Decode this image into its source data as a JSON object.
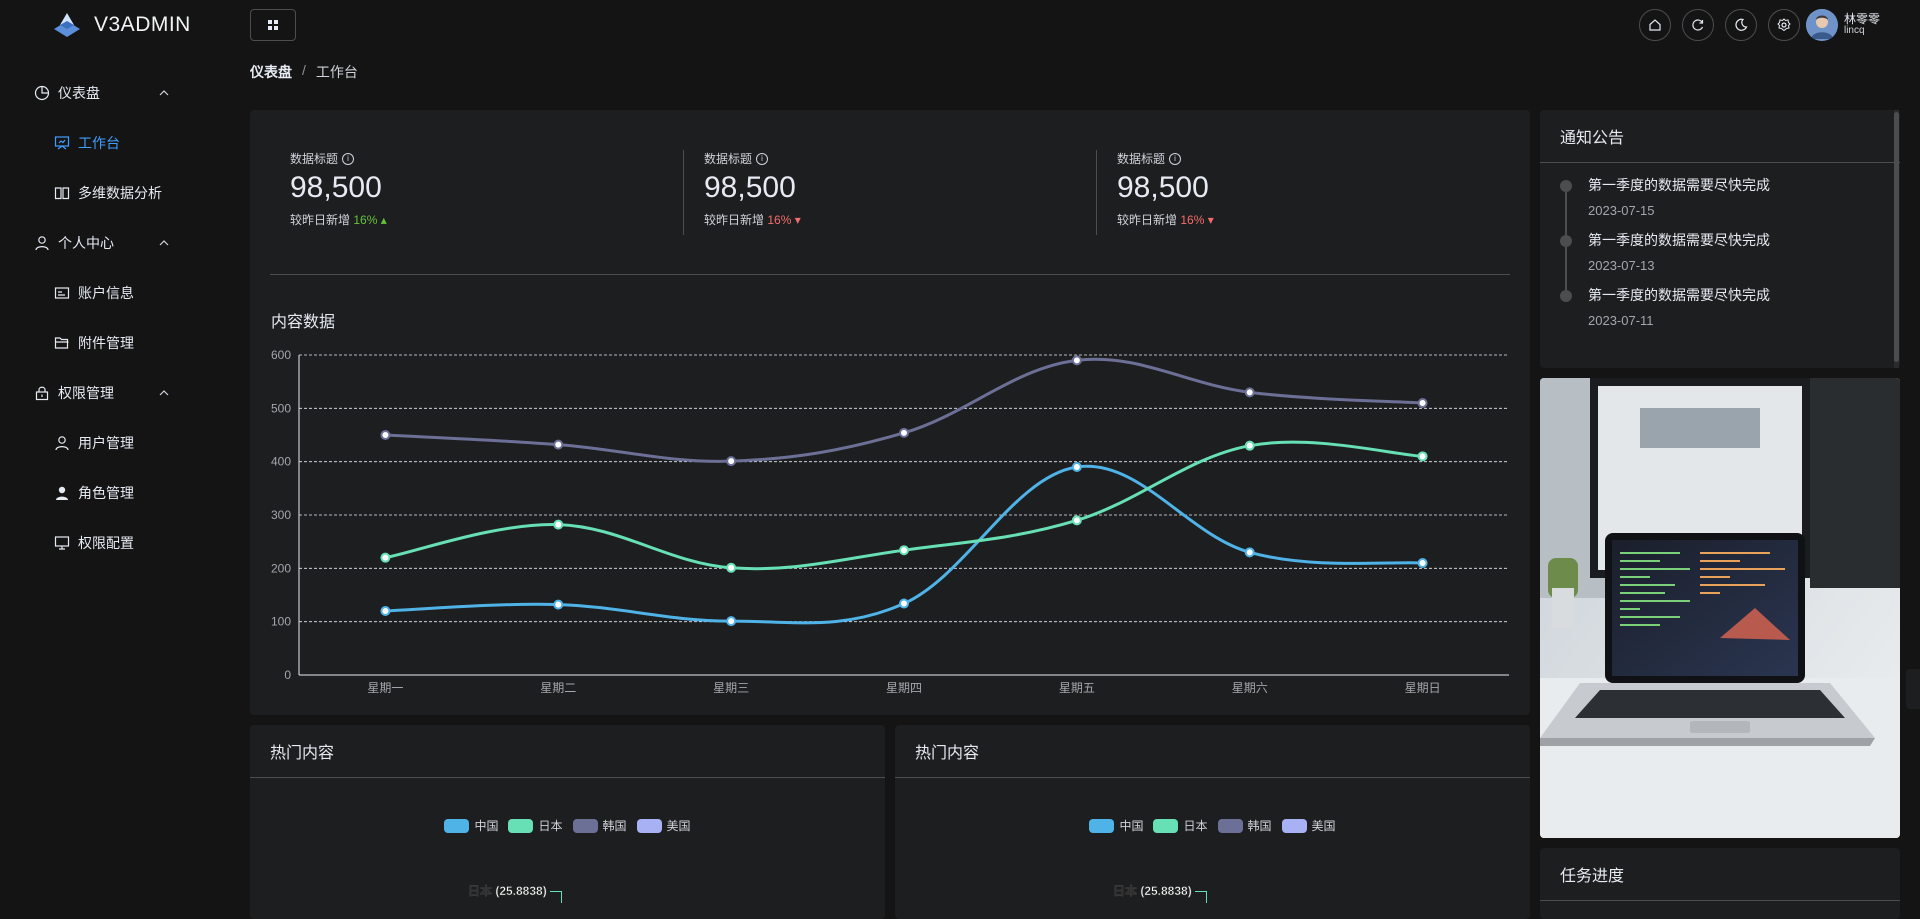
{
  "app": {
    "title": "V3ADMIN"
  },
  "sidebar": {
    "groups": [
      {
        "label": "仪表盘",
        "icon": "pie-chart-icon",
        "items": [
          {
            "label": "工作台",
            "icon": "presentation-icon",
            "active": true
          },
          {
            "label": "多维数据分析",
            "icon": "book-open-icon",
            "active": false
          }
        ]
      },
      {
        "label": "个人中心",
        "icon": "user-icon",
        "items": [
          {
            "label": "账户信息",
            "icon": "id-card-icon",
            "active": false
          },
          {
            "label": "附件管理",
            "icon": "folder-open-icon",
            "active": false
          }
        ]
      },
      {
        "label": "权限管理",
        "icon": "lock-icon",
        "items": [
          {
            "label": "用户管理",
            "icon": "user-icon",
            "active": false
          },
          {
            "label": "角色管理",
            "icon": "user-filled-icon",
            "active": false
          },
          {
            "label": "权限配置",
            "icon": "monitor-icon",
            "active": false
          }
        ]
      }
    ]
  },
  "header": {
    "icons": [
      "home-icon",
      "refresh-icon",
      "moon-icon",
      "settings-icon"
    ],
    "user": {
      "name": "林零零",
      "id": "lincq"
    }
  },
  "breadcrumb": {
    "first": "仪表盘",
    "sep": "/",
    "last": "工作台"
  },
  "stats": [
    {
      "title": "数据标题",
      "value": "98,500",
      "foot_label": "较昨日新增",
      "change": "16%",
      "trend": "up"
    },
    {
      "title": "数据标题",
      "value": "98,500",
      "foot_label": "较昨日新增",
      "change": "16%",
      "trend": "down"
    },
    {
      "title": "数据标题",
      "value": "98,500",
      "foot_label": "较昨日新增",
      "change": "16%",
      "trend": "down"
    }
  ],
  "content_chart_title": "内容数据",
  "chart_data": {
    "type": "line",
    "title": "内容数据",
    "categories": [
      "星期一",
      "星期二",
      "星期三",
      "星期四",
      "星期五",
      "星期六",
      "星期日"
    ],
    "ylim": [
      0,
      600
    ],
    "yticks": [
      0,
      100,
      200,
      300,
      400,
      500,
      600
    ],
    "grid": true,
    "smooth": true,
    "series": [
      {
        "values": [
          120,
          132,
          101,
          134,
          390,
          230,
          210
        ],
        "color": "#4fb3e8"
      },
      {
        "values": [
          220,
          282,
          201,
          234,
          290,
          430,
          410
        ],
        "color": "#67e0b5"
      },
      {
        "values": [
          450,
          432,
          401,
          454,
          590,
          530,
          510
        ],
        "color": "#6c6f96"
      }
    ]
  },
  "hot_cards": [
    {
      "title": "热门内容",
      "legend": [
        "中国",
        "日本",
        "韩国",
        "美国"
      ],
      "pie_label": "日本 (25.8838)"
    },
    {
      "title": "热门内容",
      "legend": [
        "中国",
        "日本",
        "韩国",
        "美国"
      ],
      "pie_label": "日本 (25.8838)"
    }
  ],
  "legend_colors": [
    "#4fb3e8",
    "#67e0b5",
    "#6c6f96",
    "#a9b1f5"
  ],
  "notice": {
    "title": "通知公告",
    "items": [
      {
        "title": "第一季度的数据需要尽快完成",
        "date": "2023-07-15"
      },
      {
        "title": "第一季度的数据需要尽快完成",
        "date": "2023-07-13"
      },
      {
        "title": "第一季度的数据需要尽快完成",
        "date": "2023-07-11"
      }
    ]
  },
  "task": {
    "title": "任务进度"
  }
}
